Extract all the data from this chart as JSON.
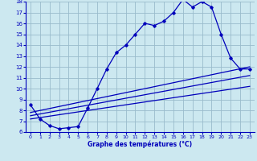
{
  "xlabel": "Graphe des températures (°C)",
  "bg_color": "#cce8f0",
  "line_color": "#0000bb",
  "grid_color": "#99bbcc",
  "xlim": [
    -0.5,
    23.5
  ],
  "ylim": [
    6,
    18
  ],
  "xticks": [
    0,
    1,
    2,
    3,
    4,
    5,
    6,
    7,
    8,
    9,
    10,
    11,
    12,
    13,
    14,
    15,
    16,
    17,
    18,
    19,
    20,
    21,
    22,
    23
  ],
  "yticks": [
    6,
    7,
    8,
    9,
    10,
    11,
    12,
    13,
    14,
    15,
    16,
    17,
    18
  ],
  "main_x": [
    0,
    1,
    2,
    3,
    4,
    5,
    6,
    7,
    8,
    9,
    10,
    11,
    12,
    13,
    14,
    15,
    16,
    17,
    18,
    19,
    20,
    21,
    22,
    23
  ],
  "main_y": [
    8.5,
    7.2,
    6.6,
    6.3,
    6.4,
    6.5,
    8.2,
    10.0,
    11.8,
    13.3,
    14.0,
    15.0,
    16.0,
    15.8,
    16.2,
    17.0,
    18.2,
    17.5,
    18.0,
    17.5,
    15.0,
    12.8,
    11.8,
    11.8
  ],
  "line1_x": [
    0,
    23
  ],
  "line1_y": [
    7.8,
    12.0
  ],
  "line2_x": [
    0,
    23
  ],
  "line2_y": [
    7.5,
    11.2
  ],
  "line3_x": [
    0,
    23
  ],
  "line3_y": [
    7.2,
    10.2
  ]
}
